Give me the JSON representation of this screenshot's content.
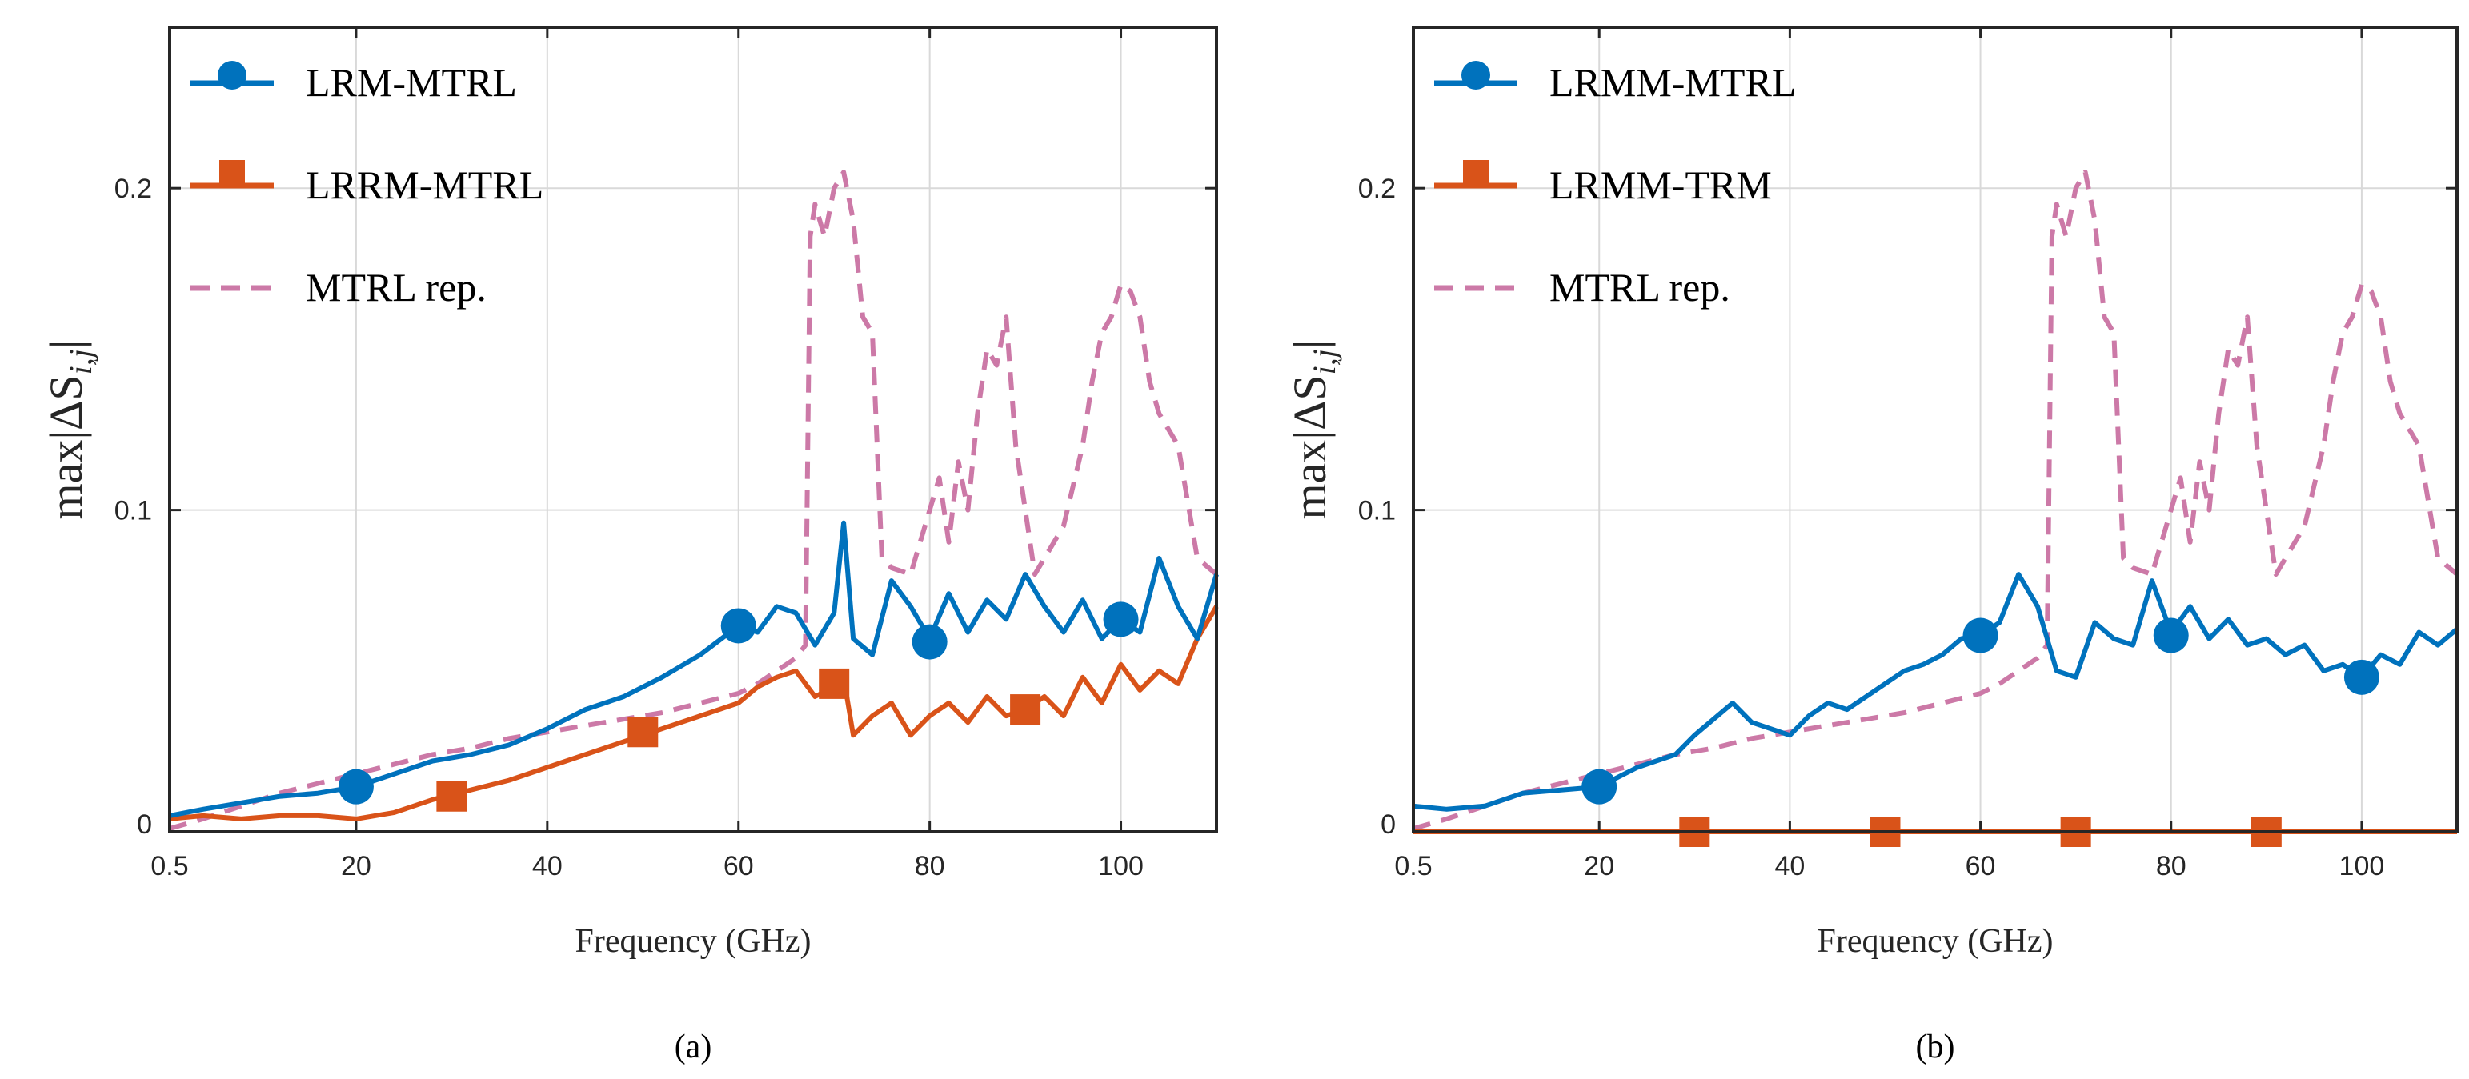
{
  "colors": {
    "blue": "#0072BD",
    "orange": "#D95319",
    "pink": "#CC79A7",
    "grid": "#d9d9d9",
    "axis": "#262626"
  },
  "chart_data": [
    {
      "type": "line",
      "caption": "(a)",
      "xlabel": "Frequency (GHz)",
      "ylabel": "max|ΔS_{i,j}|",
      "ylabel_parts": {
        "prefix": "max|ΔS",
        "sub": "i,j",
        "suffix": "|"
      },
      "xlim": [
        0.5,
        110
      ],
      "ylim": [
        0,
        0.25
      ],
      "xticks": [
        0.5,
        20,
        40,
        60,
        80,
        100
      ],
      "xtick_labels": [
        "0.5",
        "20",
        "40",
        "60",
        "80",
        "100"
      ],
      "yticks": [
        0,
        0.1,
        0.2
      ],
      "ytick_labels": [
        "0",
        "0.1",
        "0.2"
      ],
      "grid": true,
      "legend": "top-left",
      "series": [
        {
          "name": "LRM-MTRL",
          "color": "blue",
          "style": "solid",
          "marker": "circle",
          "x": [
            0.5,
            4,
            8,
            12,
            16,
            20,
            24,
            28,
            32,
            36,
            40,
            44,
            48,
            52,
            56,
            60,
            62,
            64,
            66,
            68,
            70,
            71,
            72,
            74,
            76,
            78,
            80,
            82,
            84,
            86,
            88,
            90,
            92,
            94,
            96,
            98,
            100,
            102,
            104,
            106,
            108,
            110
          ],
          "y": [
            0.005,
            0.007,
            0.009,
            0.011,
            0.012,
            0.014,
            0.018,
            0.022,
            0.024,
            0.027,
            0.032,
            0.038,
            0.042,
            0.048,
            0.055,
            0.064,
            0.062,
            0.07,
            0.068,
            0.058,
            0.068,
            0.096,
            0.06,
            0.055,
            0.078,
            0.07,
            0.06,
            0.074,
            0.062,
            0.072,
            0.066,
            0.08,
            0.07,
            0.062,
            0.072,
            0.06,
            0.066,
            0.062,
            0.085,
            0.07,
            0.06,
            0.08
          ],
          "marker_x": [
            20,
            60,
            80,
            100
          ],
          "marker_y": [
            0.014,
            0.064,
            0.059,
            0.066
          ]
        },
        {
          "name": "LRRM-MTRL",
          "color": "orange",
          "style": "solid",
          "marker": "square",
          "x": [
            0.5,
            4,
            8,
            12,
            16,
            20,
            24,
            28,
            32,
            36,
            40,
            44,
            48,
            52,
            56,
            60,
            62,
            64,
            66,
            68,
            70,
            71,
            72,
            74,
            76,
            78,
            80,
            82,
            84,
            86,
            88,
            90,
            92,
            94,
            96,
            98,
            100,
            102,
            104,
            106,
            108,
            110
          ],
          "y": [
            0.004,
            0.005,
            0.004,
            0.005,
            0.005,
            0.004,
            0.006,
            0.01,
            0.013,
            0.016,
            0.02,
            0.024,
            0.028,
            0.032,
            0.036,
            0.04,
            0.045,
            0.048,
            0.05,
            0.042,
            0.045,
            0.048,
            0.03,
            0.036,
            0.04,
            0.03,
            0.036,
            0.04,
            0.034,
            0.042,
            0.036,
            0.038,
            0.042,
            0.036,
            0.048,
            0.04,
            0.052,
            0.044,
            0.05,
            0.046,
            0.06,
            0.07
          ],
          "marker_x": [
            30,
            50,
            70,
            90
          ],
          "marker_y": [
            0.011,
            0.031,
            0.046,
            0.038
          ]
        },
        {
          "name": "MTRL rep.",
          "color": "pink",
          "style": "dashed",
          "marker": "none",
          "x": [
            0.5,
            4,
            8,
            12,
            16,
            20,
            24,
            28,
            32,
            36,
            40,
            44,
            48,
            52,
            56,
            60,
            62,
            64,
            66,
            67,
            67.5,
            68,
            69,
            70,
            71,
            72,
            73,
            74,
            75,
            76,
            78,
            80,
            81,
            82,
            83,
            84,
            85,
            86,
            87,
            88,
            89,
            90,
            91,
            92,
            94,
            96,
            97,
            98,
            99,
            100,
            101,
            102,
            103,
            104,
            106,
            108,
            110
          ],
          "y": [
            0.001,
            0.004,
            0.008,
            0.012,
            0.015,
            0.018,
            0.021,
            0.024,
            0.026,
            0.029,
            0.031,
            0.033,
            0.035,
            0.037,
            0.04,
            0.043,
            0.046,
            0.05,
            0.054,
            0.058,
            0.185,
            0.195,
            0.185,
            0.2,
            0.205,
            0.19,
            0.16,
            0.155,
            0.085,
            0.082,
            0.08,
            0.1,
            0.11,
            0.09,
            0.115,
            0.1,
            0.13,
            0.15,
            0.145,
            0.16,
            0.12,
            0.1,
            0.08,
            0.085,
            0.095,
            0.12,
            0.14,
            0.155,
            0.16,
            0.17,
            0.168,
            0.16,
            0.14,
            0.13,
            0.12,
            0.085,
            0.08
          ]
        }
      ]
    },
    {
      "type": "line",
      "caption": "(b)",
      "xlabel": "Frequency (GHz)",
      "ylabel": "max|ΔS_{i,j}|",
      "ylabel_parts": {
        "prefix": "max|ΔS",
        "sub": "i,j",
        "suffix": "|"
      },
      "xlim": [
        0.5,
        110
      ],
      "ylim": [
        0,
        0.25
      ],
      "xticks": [
        0.5,
        20,
        40,
        60,
        80,
        100
      ],
      "xtick_labels": [
        "0.5",
        "20",
        "40",
        "60",
        "80",
        "100"
      ],
      "yticks": [
        0,
        0.1,
        0.2
      ],
      "ytick_labels": [
        "0",
        "0.1",
        "0.2"
      ],
      "grid": true,
      "legend": "top-left",
      "series": [
        {
          "name": "LRMM-MTRL",
          "color": "blue",
          "style": "solid",
          "marker": "circle",
          "x": [
            0.5,
            4,
            8,
            12,
            16,
            20,
            24,
            28,
            30,
            32,
            34,
            36,
            38,
            40,
            42,
            44,
            46,
            48,
            50,
            52,
            54,
            56,
            58,
            60,
            62,
            64,
            66,
            68,
            70,
            72,
            74,
            76,
            78,
            80,
            82,
            84,
            86,
            88,
            90,
            92,
            94,
            96,
            98,
            100,
            102,
            104,
            106,
            108,
            110
          ],
          "y": [
            0.008,
            0.007,
            0.008,
            0.012,
            0.013,
            0.014,
            0.02,
            0.024,
            0.03,
            0.035,
            0.04,
            0.034,
            0.032,
            0.03,
            0.036,
            0.04,
            0.038,
            0.042,
            0.046,
            0.05,
            0.052,
            0.055,
            0.06,
            0.061,
            0.065,
            0.08,
            0.07,
            0.05,
            0.048,
            0.065,
            0.06,
            0.058,
            0.078,
            0.062,
            0.07,
            0.06,
            0.066,
            0.058,
            0.06,
            0.055,
            0.058,
            0.05,
            0.052,
            0.048,
            0.055,
            0.052,
            0.062,
            0.058,
            0.063
          ],
          "marker_x": [
            20,
            60,
            80,
            100
          ],
          "marker_y": [
            0.014,
            0.061,
            0.061,
            0.048
          ]
        },
        {
          "name": "LRMM-TRM",
          "color": "orange",
          "style": "solid",
          "marker": "square",
          "x": [
            0.5,
            110
          ],
          "y": [
            0,
            0
          ],
          "marker_x": [
            30,
            50,
            70,
            90
          ],
          "marker_y": [
            0,
            0,
            0,
            0
          ]
        },
        {
          "name": "MTRL rep.",
          "color": "pink",
          "style": "dashed",
          "marker": "none",
          "x": [
            0.5,
            4,
            8,
            12,
            16,
            20,
            24,
            28,
            32,
            36,
            40,
            44,
            48,
            52,
            56,
            60,
            62,
            64,
            66,
            67,
            67.5,
            68,
            69,
            70,
            71,
            72,
            73,
            74,
            75,
            76,
            78,
            80,
            81,
            82,
            83,
            84,
            85,
            86,
            87,
            88,
            89,
            90,
            91,
            92,
            94,
            96,
            97,
            98,
            99,
            100,
            101,
            102,
            103,
            104,
            106,
            108,
            110
          ],
          "y": [
            0.001,
            0.004,
            0.008,
            0.012,
            0.015,
            0.018,
            0.021,
            0.024,
            0.026,
            0.029,
            0.031,
            0.033,
            0.035,
            0.037,
            0.04,
            0.043,
            0.046,
            0.05,
            0.054,
            0.058,
            0.185,
            0.195,
            0.185,
            0.2,
            0.205,
            0.19,
            0.16,
            0.155,
            0.085,
            0.082,
            0.08,
            0.1,
            0.11,
            0.09,
            0.115,
            0.1,
            0.13,
            0.15,
            0.145,
            0.16,
            0.12,
            0.1,
            0.08,
            0.085,
            0.095,
            0.12,
            0.14,
            0.155,
            0.16,
            0.17,
            0.168,
            0.16,
            0.14,
            0.13,
            0.12,
            0.085,
            0.08
          ]
        }
      ]
    }
  ]
}
